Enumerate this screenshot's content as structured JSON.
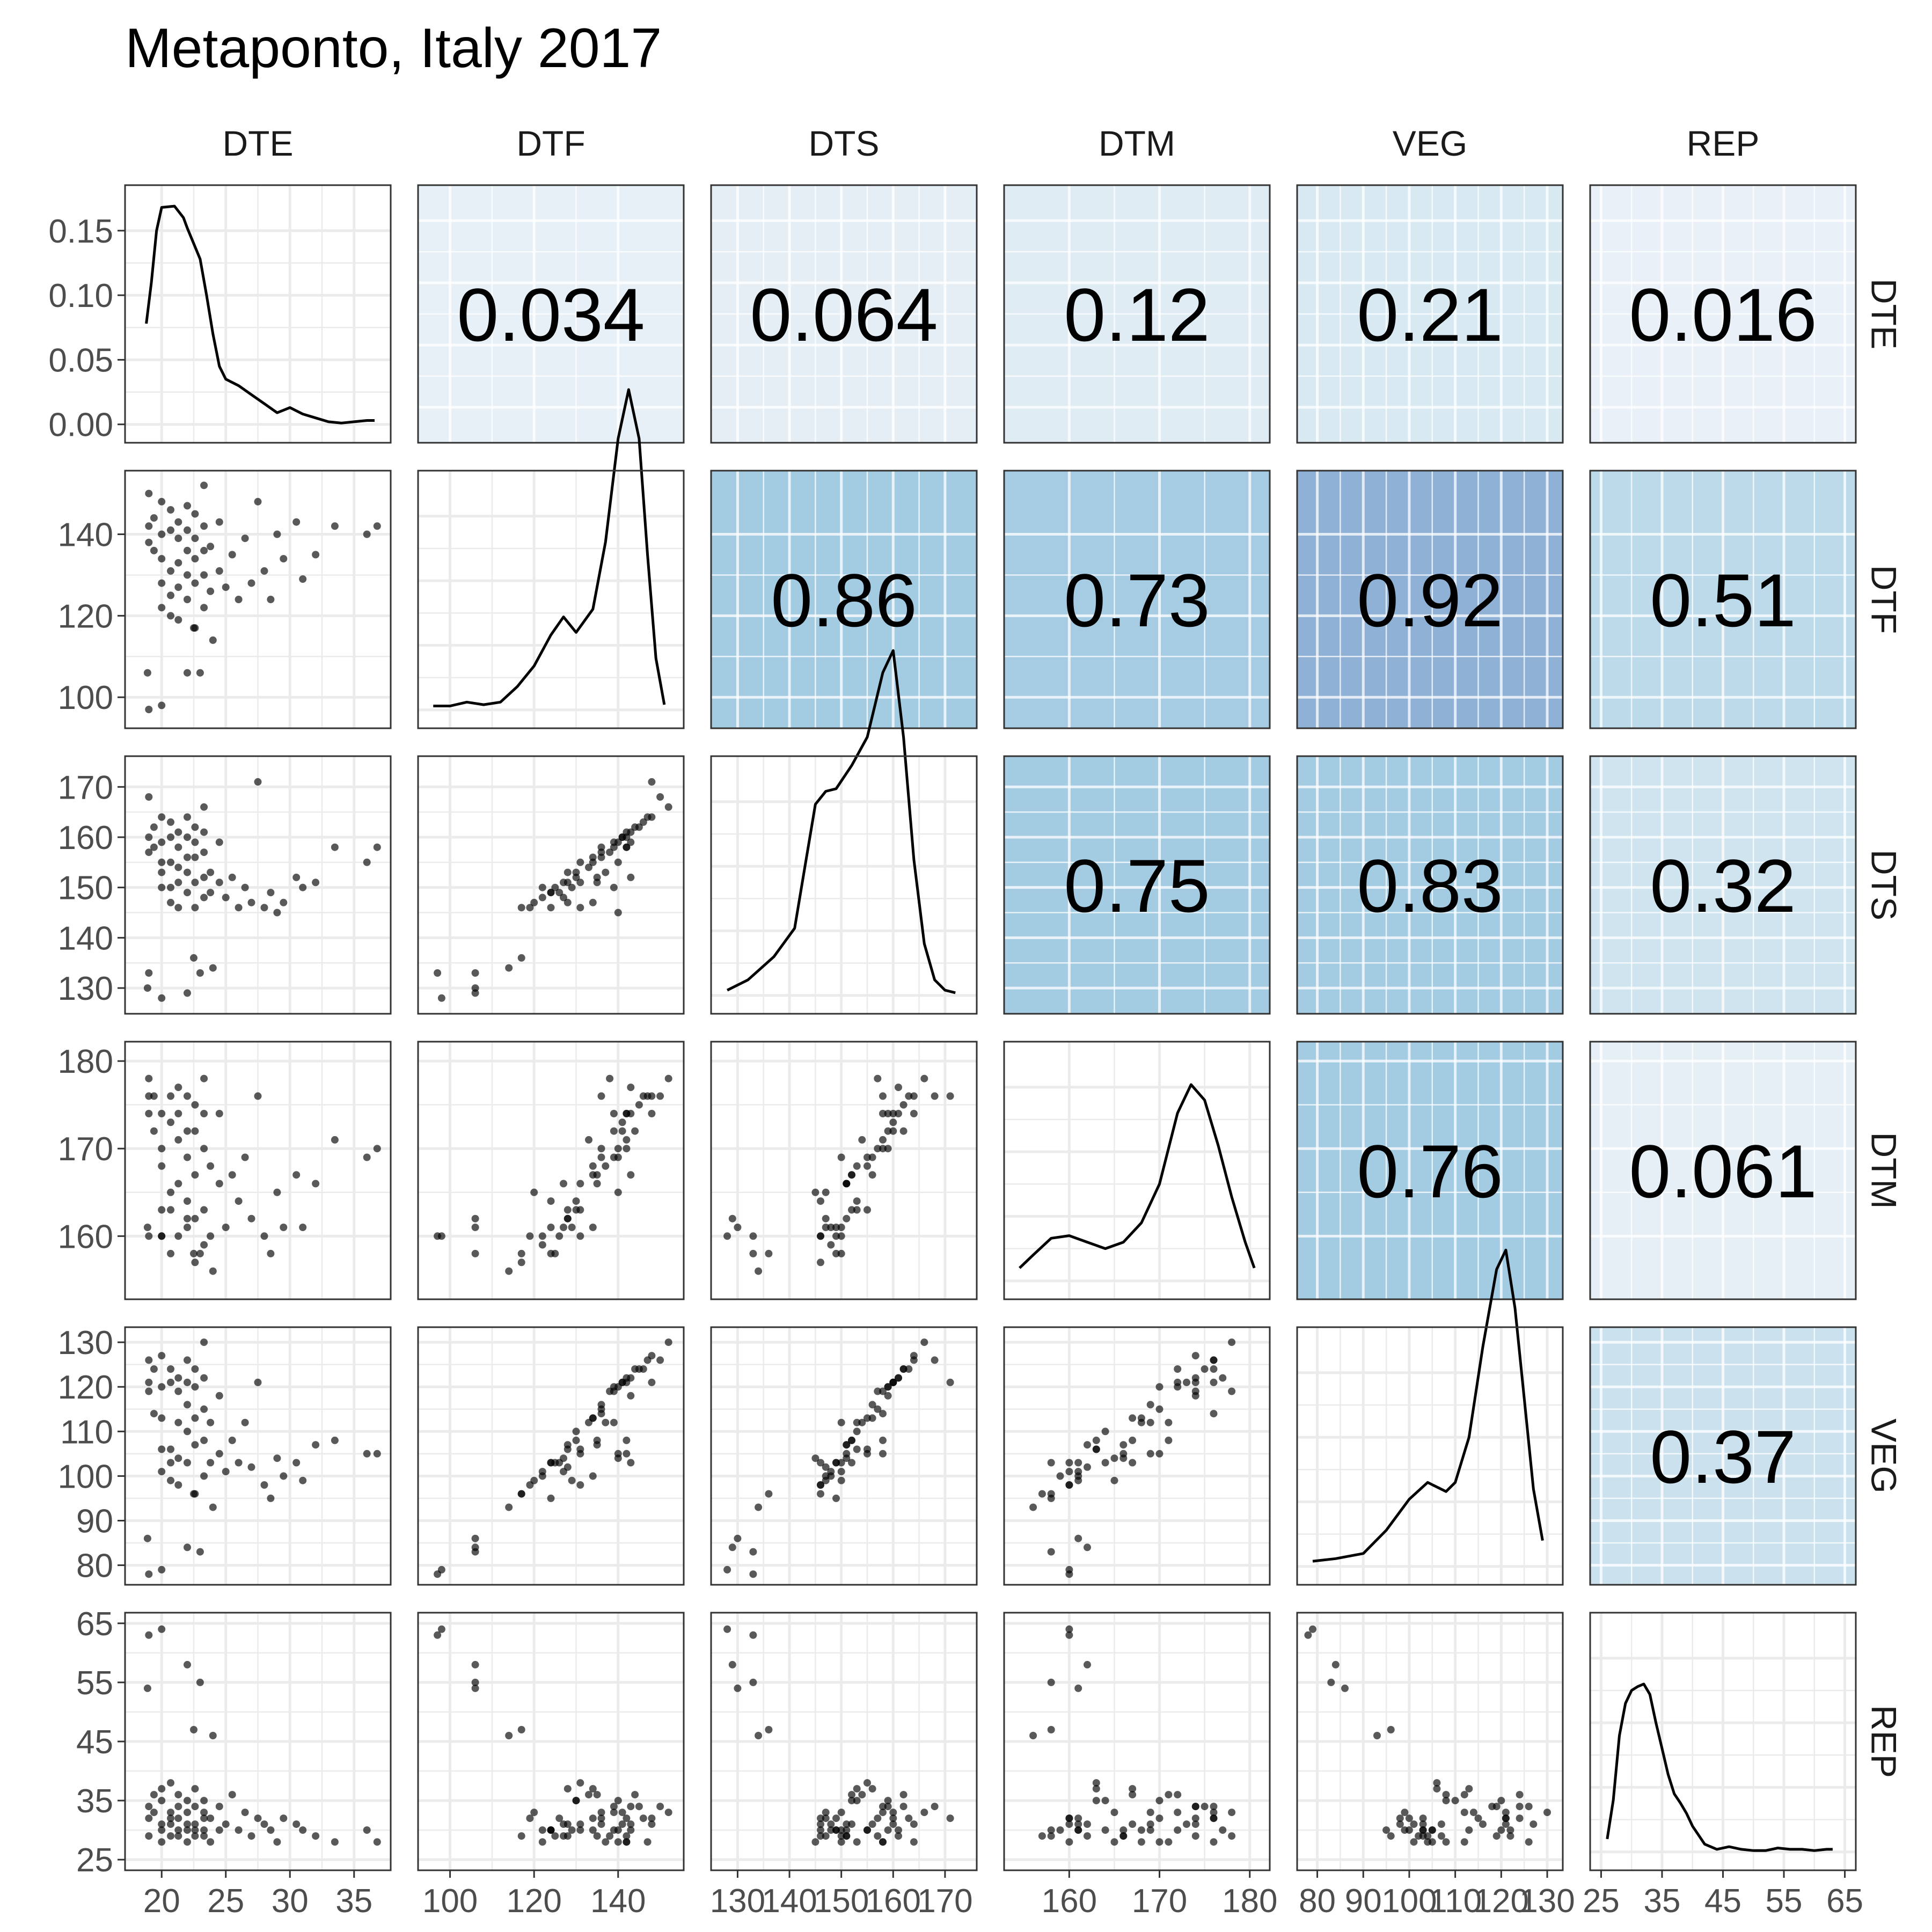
{
  "chart_data": {
    "type": "scatter",
    "title": "Metaponto, Italy 2017",
    "variables": [
      "DTE",
      "DTF",
      "DTS",
      "DTM",
      "VEG",
      "REP"
    ],
    "axes": {
      "DTE": {
        "range": [
          18,
          37
        ],
        "ticks": [
          20,
          25,
          30,
          35
        ],
        "tick_labels": [
          "20",
          "25",
          "30",
          "35"
        ]
      },
      "DTF": {
        "range": [
          95,
          153
        ],
        "ticks": [
          100,
          120,
          140
        ],
        "tick_labels": [
          "100",
          "120",
          "140"
        ]
      },
      "DTS": {
        "range": [
          127,
          174
        ],
        "ticks": [
          130,
          140,
          150,
          160,
          170
        ],
        "tick_labels": [
          "130",
          "140",
          "150",
          "160",
          "170"
        ]
      },
      "DTM": {
        "range": [
          154,
          181
        ],
        "ticks": [
          160,
          170,
          180
        ],
        "tick_labels": [
          "160",
          "170",
          "180"
        ]
      },
      "VEG": {
        "range": [
          78,
          131
        ],
        "ticks": [
          80,
          90,
          100,
          110,
          120,
          130
        ],
        "tick_labels": [
          "80",
          "90",
          "100",
          "110",
          "120",
          "130"
        ]
      },
      "REP": {
        "range": [
          25,
          65
        ],
        "ticks": [
          25,
          35,
          45,
          55,
          65
        ],
        "tick_labels": [
          "25",
          "35",
          "45",
          "55",
          "65"
        ]
      }
    },
    "density_axis": {
      "range": [
        -0.006,
        0.177
      ],
      "ticks": [
        0,
        0.05,
        0.1,
        0.15
      ],
      "tick_labels": [
        "0.00",
        "0.05",
        "0.10",
        "0.15"
      ]
    },
    "correlations": [
      {
        "row": "DTE",
        "col": "DTF",
        "label": "0.034",
        "value": 0.034
      },
      {
        "row": "DTE",
        "col": "DTS",
        "label": "0.064",
        "value": 0.064
      },
      {
        "row": "DTE",
        "col": "DTM",
        "label": "0.12",
        "value": 0.12
      },
      {
        "row": "DTE",
        "col": "VEG",
        "label": "0.21",
        "value": 0.21
      },
      {
        "row": "DTE",
        "col": "REP",
        "label": "0.016",
        "value": 0.016
      },
      {
        "row": "DTF",
        "col": "DTS",
        "label": "0.86",
        "value": 0.86
      },
      {
        "row": "DTF",
        "col": "DTM",
        "label": "0.73",
        "value": 0.73
      },
      {
        "row": "DTF",
        "col": "VEG",
        "label": "0.92",
        "value": 0.92
      },
      {
        "row": "DTF",
        "col": "REP",
        "label": "0.51",
        "value": 0.51
      },
      {
        "row": "DTS",
        "col": "DTM",
        "label": "0.75",
        "value": 0.75
      },
      {
        "row": "DTS",
        "col": "VEG",
        "label": "0.83",
        "value": 0.83
      },
      {
        "row": "DTS",
        "col": "REP",
        "label": "0.32",
        "value": 0.32
      },
      {
        "row": "DTM",
        "col": "VEG",
        "label": "0.76",
        "value": 0.76
      },
      {
        "row": "DTM",
        "col": "REP",
        "label": "0.061",
        "value": 0.061
      },
      {
        "row": "VEG",
        "col": "REP",
        "label": "0.37",
        "value": 0.37
      }
    ],
    "densities": {
      "DTE": [
        [
          18.8,
          0.078
        ],
        [
          19.2,
          0.11
        ],
        [
          19.6,
          0.15
        ],
        [
          20,
          0.168
        ],
        [
          21,
          0.169
        ],
        [
          21.7,
          0.16
        ],
        [
          22,
          0.152
        ],
        [
          23,
          0.128
        ],
        [
          23.5,
          0.1
        ],
        [
          24,
          0.07
        ],
        [
          24.5,
          0.045
        ],
        [
          25,
          0.035
        ],
        [
          26,
          0.03
        ],
        [
          27,
          0.023
        ],
        [
          28,
          0.016
        ],
        [
          29,
          0.009
        ],
        [
          30,
          0.013
        ],
        [
          31,
          0.008
        ],
        [
          32,
          0.005
        ],
        [
          33,
          0.002
        ],
        [
          34,
          0.001
        ],
        [
          35,
          0.002
        ],
        [
          36,
          0.003
        ],
        [
          36.6,
          0.003
        ]
      ],
      "DTF": [
        [
          96,
          0.003
        ],
        [
          100,
          0.003
        ],
        [
          104,
          0.006
        ],
        [
          108,
          0.004
        ],
        [
          112,
          0.006
        ],
        [
          116,
          0.018
        ],
        [
          120,
          0.034
        ],
        [
          124,
          0.058
        ],
        [
          127,
          0.072
        ],
        [
          130,
          0.06
        ],
        [
          134,
          0.078
        ],
        [
          137,
          0.13
        ],
        [
          140,
          0.21
        ],
        [
          142.5,
          0.248
        ],
        [
          145,
          0.21
        ],
        [
          147,
          0.12
        ],
        [
          149,
          0.04
        ],
        [
          151,
          0.004
        ]
      ],
      "DTS": [
        [
          128,
          0.004
        ],
        [
          132,
          0.012
        ],
        [
          137,
          0.03
        ],
        [
          141,
          0.052
        ],
        [
          143,
          0.1
        ],
        [
          145,
          0.148
        ],
        [
          147,
          0.158
        ],
        [
          149,
          0.16
        ],
        [
          152,
          0.178
        ],
        [
          155,
          0.2
        ],
        [
          158,
          0.25
        ],
        [
          160,
          0.267
        ],
        [
          162,
          0.2
        ],
        [
          164,
          0.105
        ],
        [
          166,
          0.04
        ],
        [
          168,
          0.012
        ],
        [
          170,
          0.004
        ],
        [
          172,
          0.002
        ]
      ],
      "DTM": [
        [
          154.5,
          0.01
        ],
        [
          156,
          0.02
        ],
        [
          158,
          0.033
        ],
        [
          160,
          0.035
        ],
        [
          162,
          0.03
        ],
        [
          164,
          0.025
        ],
        [
          166,
          0.03
        ],
        [
          168,
          0.045
        ],
        [
          170,
          0.075
        ],
        [
          172,
          0.13
        ],
        [
          173.5,
          0.152
        ],
        [
          175,
          0.14
        ],
        [
          176.5,
          0.105
        ],
        [
          178,
          0.065
        ],
        [
          179.5,
          0.03
        ],
        [
          180.5,
          0.01
        ]
      ],
      "VEG": [
        [
          79,
          0.004
        ],
        [
          84,
          0.006
        ],
        [
          90,
          0.01
        ],
        [
          95,
          0.028
        ],
        [
          100,
          0.052
        ],
        [
          104,
          0.065
        ],
        [
          108,
          0.058
        ],
        [
          110,
          0.065
        ],
        [
          113,
          0.1
        ],
        [
          116,
          0.17
        ],
        [
          119,
          0.23
        ],
        [
          121,
          0.245
        ],
        [
          123,
          0.2
        ],
        [
          125,
          0.13
        ],
        [
          127,
          0.06
        ],
        [
          129,
          0.02
        ]
      ],
      "REP": [
        [
          26,
          0.01
        ],
        [
          27,
          0.04
        ],
        [
          28,
          0.09
        ],
        [
          29,
          0.115
        ],
        [
          30,
          0.125
        ],
        [
          31,
          0.128
        ],
        [
          32,
          0.13
        ],
        [
          33,
          0.122
        ],
        [
          34,
          0.1
        ],
        [
          35,
          0.08
        ],
        [
          36,
          0.06
        ],
        [
          37,
          0.045
        ],
        [
          38,
          0.038
        ],
        [
          39,
          0.03
        ],
        [
          40,
          0.02
        ],
        [
          42,
          0.006
        ],
        [
          44,
          0.002
        ],
        [
          46,
          0.004
        ],
        [
          48,
          0.002
        ],
        [
          50,
          0.001
        ],
        [
          52,
          0.001
        ],
        [
          54,
          0.003
        ],
        [
          56,
          0.002
        ],
        [
          58,
          0.002
        ],
        [
          60,
          0.001
        ],
        [
          62,
          0.002
        ],
        [
          63,
          0.002
        ]
      ]
    },
    "points": [
      [
        18.9,
        106,
        130,
        161,
        86,
        54
      ],
      [
        19,
        97,
        133,
        160,
        78,
        63
      ],
      [
        20,
        98,
        128,
        160,
        79,
        64
      ],
      [
        22,
        106,
        129,
        162,
        84,
        58
      ],
      [
        23,
        106,
        133,
        158,
        83,
        55
      ],
      [
        22.5,
        117,
        136,
        158,
        96,
        47
      ],
      [
        24,
        114,
        134,
        156,
        93,
        46
      ],
      [
        19,
        150,
        168,
        176,
        126,
        34
      ],
      [
        19,
        142,
        160,
        174,
        121,
        32
      ],
      [
        19,
        138,
        157,
        178,
        119,
        29
      ],
      [
        19.4,
        144,
        162,
        172,
        124,
        36
      ],
      [
        19.4,
        136,
        158,
        176,
        114,
        33
      ],
      [
        20,
        148,
        164,
        174,
        127,
        31
      ],
      [
        20,
        140,
        159,
        170,
        120,
        35
      ],
      [
        20,
        134,
        155,
        168,
        113,
        30
      ],
      [
        20,
        128,
        153,
        163,
        106,
        37
      ],
      [
        20,
        122,
        150,
        160,
        101,
        28
      ],
      [
        20.7,
        146,
        163,
        176,
        124,
        32
      ],
      [
        20.7,
        141,
        160,
        173,
        121,
        31
      ],
      [
        20.7,
        131,
        155,
        163,
        106,
        38
      ],
      [
        20.7,
        125,
        150,
        158,
        103,
        29
      ],
      [
        20.7,
        120,
        147,
        165,
        99,
        33
      ],
      [
        21.3,
        143,
        161,
        177,
        122,
        30
      ],
      [
        21.3,
        139,
        158,
        174,
        119,
        34
      ],
      [
        21.3,
        133,
        154,
        171,
        112,
        36
      ],
      [
        21.3,
        127,
        151,
        166,
        104,
        29
      ],
      [
        21.3,
        119,
        146,
        160,
        98,
        32
      ],
      [
        22,
        147,
        164,
        176,
        126,
        28
      ],
      [
        22,
        141,
        160,
        172,
        121,
        33
      ],
      [
        22,
        136,
        156,
        169,
        116,
        31
      ],
      [
        22,
        130,
        153,
        164,
        110,
        35
      ],
      [
        22,
        124,
        149,
        161,
        103,
        30
      ],
      [
        22.6,
        145,
        162,
        175,
        124,
        34
      ],
      [
        22.6,
        139,
        159,
        172,
        120,
        30
      ],
      [
        22.6,
        134,
        156,
        167,
        113,
        37
      ],
      [
        22.6,
        128,
        151,
        162,
        107,
        31
      ],
      [
        22.6,
        117,
        146,
        157,
        96,
        29
      ],
      [
        23.3,
        152,
        166,
        178,
        130,
        33
      ],
      [
        23.3,
        142,
        161,
        174,
        122,
        29
      ],
      [
        23.3,
        136,
        157,
        170,
        115,
        32
      ],
      [
        23.3,
        130,
        152,
        163,
        108,
        35
      ],
      [
        23.3,
        122,
        148,
        159,
        100,
        30
      ],
      [
        23.8,
        137,
        153,
        168,
        112,
        28
      ],
      [
        23.8,
        126,
        149,
        160,
        103,
        32
      ],
      [
        24.5,
        131,
        151,
        166,
        105,
        30
      ],
      [
        24.5,
        143,
        159,
        174,
        118,
        34
      ],
      [
        25,
        127,
        148,
        161,
        101,
        31
      ],
      [
        25.5,
        135,
        152,
        167,
        108,
        36
      ],
      [
        26,
        124,
        146,
        164,
        103,
        30
      ],
      [
        26.5,
        139,
        150,
        169,
        112,
        33
      ],
      [
        27,
        128,
        147,
        162,
        102,
        29
      ],
      [
        27.5,
        148,
        171,
        176,
        121,
        32
      ],
      [
        28,
        131,
        146,
        160,
        98,
        31
      ],
      [
        28.5,
        124,
        149,
        158,
        95,
        30
      ],
      [
        29,
        140,
        145,
        165,
        104,
        28
      ],
      [
        29.5,
        134,
        147,
        161,
        100,
        32
      ],
      [
        30.5,
        143,
        152,
        167,
        103,
        31
      ],
      [
        31,
        129,
        150,
        161,
        99,
        30
      ],
      [
        32,
        135,
        151,
        166,
        107,
        29
      ],
      [
        33.5,
        142,
        158,
        171,
        108,
        28
      ],
      [
        36,
        140,
        155,
        169,
        105,
        30
      ],
      [
        36.8,
        142,
        158,
        170,
        105,
        28
      ]
    ]
  }
}
